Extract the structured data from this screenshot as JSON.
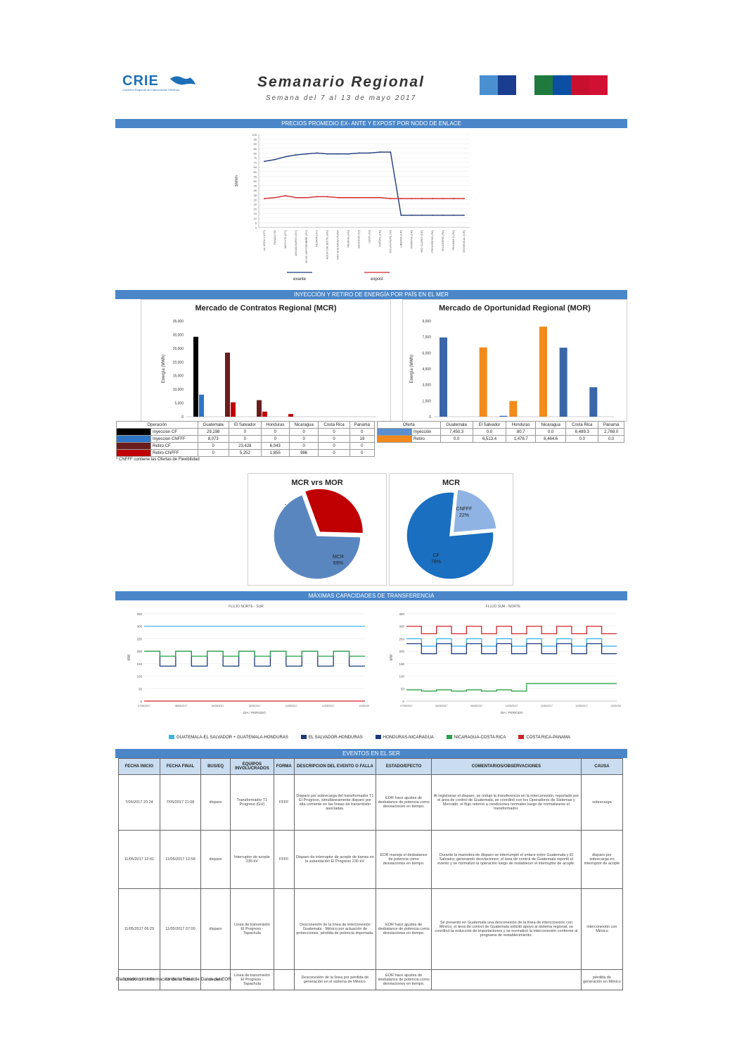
{
  "header": {
    "logo_text": "CRIE",
    "logo_subtitle": "Comisión Regional de Interconexión Eléctrica",
    "title": "Semanario Regional",
    "subtitle": "Semana del 7 al 13 de mayo 2017",
    "flag_colors": [
      "#4a8fd0",
      "#1a3d8f",
      "#ffffff",
      "#1f7a3d",
      "#0b4fa3",
      "#c8102e",
      "#d21034"
    ]
  },
  "sections": {
    "prices": "PRECIOS PROMEDIO EX- ANTE Y EXPOST POR NODO DE ENLACE",
    "injection": "INYECCIÓN Y RETIRO DE ENERGÍA POR PAÍS EN EL MER",
    "transfer": "MÁXIMAS CAPACIDADES DE TRANSFERENCIA",
    "events": "EVENTOS EN EL SER"
  },
  "chart_data": [
    {
      "type": "line",
      "ylabel": "$/MWh",
      "ylim": [
        0,
        100
      ],
      "yticks": [
        "0",
        "5",
        "10",
        "15",
        "20",
        "25",
        "30",
        "35",
        "40",
        "45",
        "50",
        "55",
        "60",
        "65",
        "70",
        "75",
        "80",
        "85",
        "90",
        "95",
        "100"
      ],
      "x": [
        "LA VEGA II (GT)",
        "PANALUYA",
        "MOYUTA (GT)",
        "AHUACHAPAN (SV)",
        "15 DE SEPTIEMBRE (SV)",
        "NEJAPA (SV)",
        "AGUA CALIENTE (HN)",
        "SAN BUENAVENTURA",
        "PAVANA (HN)",
        "SANDINO (NI)",
        "LEON (NI)",
        "CAÑAS (CR)",
        "TICUANTEPE (NI)",
        "LIBERIA (CR)",
        "PARRITA (CR)",
        "RIO CLARO (CR)",
        "PROGRESO (PA)",
        "VELADERO (PA)",
        "PANAMA II (PA)",
        "DOMINICAL (CR)"
      ],
      "series": [
        {
          "name": "exante",
          "color": "#1f3a7a",
          "values": [
            71,
            73,
            76,
            78,
            79,
            80,
            79,
            79,
            79,
            80,
            80,
            81,
            81,
            13,
            13,
            13,
            13,
            13,
            13,
            13
          ]
        },
        {
          "name": "expost",
          "color": "#d0242b",
          "values": [
            31,
            32,
            34,
            32,
            32,
            33,
            33,
            32,
            32,
            32,
            32,
            32,
            31,
            31,
            31,
            31,
            31,
            31,
            31,
            31
          ]
        }
      ]
    },
    {
      "type": "bar",
      "title": "Mercado de Contratos Regional (MCR)",
      "ylabel": "Energía (MWh)",
      "ylim": [
        0,
        35000
      ],
      "yticks": [
        "0",
        "5,000",
        "10,000",
        "15,000",
        "20,000",
        "25,000",
        "30,000",
        "35,000"
      ],
      "categories": [
        "Guatemala",
        "El Salvador",
        "Honduras",
        "Nicaragua",
        "Costa Rica",
        "Panamá"
      ],
      "series": [
        {
          "name": "Inyeccion CF",
          "color": "#000000",
          "values": [
            29198,
            0,
            0,
            0,
            0,
            0
          ]
        },
        {
          "name": "Inyeccion CNFFF",
          "color": "#2e75c8",
          "values": [
            8073,
            0,
            0,
            0,
            0,
            19
          ]
        },
        {
          "name": "Retiro CF",
          "color": "#6b1d1d",
          "values": [
            0,
            23428,
            6043,
            0,
            0,
            0
          ]
        },
        {
          "name": "Retiro CNFFF",
          "color": "#c00000",
          "values": [
            0,
            5252,
            1855,
            986,
            0,
            0
          ]
        }
      ]
    },
    {
      "type": "bar",
      "title": "Mercado de Oportunidad Regional (MOR)",
      "ylabel": "Energía (MWh)",
      "ylim": [
        0,
        9000
      ],
      "yticks": [
        "0",
        "1,500",
        "3,000",
        "4,500",
        "6,000",
        "7,500",
        "9,000"
      ],
      "categories": [
        "Guatemala",
        "El Salvador",
        "Honduras",
        "Nicaragua",
        "Costa Rica",
        "Panamá"
      ],
      "series": [
        {
          "name": "Inyección",
          "color": "#3a66a8",
          "values": [
            7450.3,
            0.0,
            80.7,
            0.0,
            6489.3,
            2769.0
          ]
        },
        {
          "name": "Retiro",
          "color": "#f28a1c",
          "values": [
            0.0,
            6513.4,
            1476.7,
            8464.6,
            0.0,
            0.0
          ]
        }
      ]
    },
    {
      "type": "pie",
      "title": "MCR vrs MOR",
      "slices": [
        {
          "label": "MOR",
          "value": 31,
          "pct": "31%",
          "color": "#c00000"
        },
        {
          "label": "MCR",
          "value": 69,
          "pct": "69%",
          "color": "#5a86c0"
        }
      ]
    },
    {
      "type": "pie",
      "title": "MCR",
      "slices": [
        {
          "label": "CNFFF",
          "value": 22,
          "pct": "22%",
          "color": "#8fb4e3"
        },
        {
          "label": "CF",
          "value": 78,
          "pct": "78%",
          "color": "#1a6fc0"
        }
      ]
    },
    {
      "type": "line",
      "title": "FLUJO NORTE - SUR",
      "ylabel": "MW",
      "xlabel": "DIA / PERIODO",
      "ylim": [
        0,
        350
      ],
      "yticks": [
        "0",
        "50",
        "100",
        "150",
        "200",
        "250",
        "300",
        "350"
      ],
      "xticks": [
        "07/05/2017",
        "08/05/2017",
        "09/05/2017",
        "10/05/2017",
        "11/05/2017",
        "12/05/2017",
        "13/05/2017"
      ],
      "series": [
        {
          "name": "GUATEMALA-EL SALVADOR + GUATEMALA-HONDURAS",
          "color": "#3fb4e6",
          "values": [
            300,
            300,
            300,
            300,
            300,
            300,
            300,
            300,
            300,
            300,
            300,
            300,
            300,
            300
          ]
        },
        {
          "name": "EL SALVADOR-HONDURAS",
          "color": "#1f3a7a",
          "values": [
            200,
            140,
            200,
            140,
            200,
            140,
            200,
            140,
            200,
            140,
            200,
            140,
            200,
            140
          ]
        },
        {
          "name": "NICARAGUA-COSTA RICA",
          "color": "#2aa34a",
          "values": [
            200,
            180,
            200,
            180,
            200,
            180,
            200,
            180,
            200,
            180,
            200,
            180,
            200,
            180
          ]
        },
        {
          "name": "COSTA RICA-PANAMA",
          "color": "#d0242b",
          "values": [
            0,
            0,
            0,
            0,
            0,
            0,
            0,
            0,
            0,
            0,
            0,
            0,
            0,
            0
          ]
        }
      ]
    },
    {
      "type": "line",
      "title": "FLUJO SUR - NORTE",
      "ylabel": "MW",
      "xlabel": "DIA / PERIODO",
      "ylim": [
        0,
        350
      ],
      "yticks": [
        "0",
        "50",
        "100",
        "150",
        "200",
        "250",
        "300",
        "350"
      ],
      "xticks": [
        "07/05/2017",
        "08/05/2017",
        "09/05/2017",
        "10/05/2017",
        "11/05/2017",
        "12/05/2017",
        "13/05/2017"
      ],
      "series": [
        {
          "name": "GUATEMALA-EL SALVADOR + GUATEMALA-HONDURAS",
          "color": "#3fb4e6",
          "values": [
            250,
            220,
            250,
            220,
            250,
            220,
            250,
            220,
            250,
            220,
            250,
            220,
            250,
            220
          ]
        },
        {
          "name": "EL SALVADOR-HONDURAS",
          "color": "#1f3a7a",
          "values": [
            230,
            190,
            230,
            190,
            230,
            190,
            230,
            190,
            230,
            190,
            230,
            190,
            230,
            190
          ]
        },
        {
          "name": "NICARAGUA-COSTA RICA",
          "color": "#2aa34a",
          "values": [
            45,
            40,
            45,
            40,
            45,
            40,
            45,
            40,
            70,
            70,
            70,
            70,
            70,
            70
          ]
        },
        {
          "name": "COSTA RICA-PANAMA",
          "color": "#d0242b",
          "values": [
            300,
            270,
            300,
            270,
            300,
            270,
            300,
            270,
            300,
            270,
            300,
            270,
            300,
            270
          ]
        }
      ]
    }
  ],
  "price_legend": [
    "exante",
    "expost"
  ],
  "mcr_table": {
    "header": [
      "Operación",
      "Guatemala",
      "El Salvador",
      "Honduras",
      "Nicaragua",
      "Costa Rica",
      "Panamá"
    ],
    "rows": [
      {
        "label": "Inyeccion CF",
        "color": "#000000",
        "cells": [
          "29,198",
          "0",
          "0",
          "0",
          "0",
          "0"
        ]
      },
      {
        "label": "Inyeccion CNFFF",
        "color": "#2e75c8",
        "cells": [
          "8,073",
          "0",
          "0",
          "0",
          "0",
          "19"
        ]
      },
      {
        "label": "Retiro CF",
        "color": "#6b1d1d",
        "cells": [
          "0",
          "23,428",
          "6,043",
          "0",
          "0",
          "0"
        ]
      },
      {
        "label": "Retiro CNFFF",
        "color": "#c00000",
        "cells": [
          "0",
          "5,252",
          "1,855",
          "986",
          "0",
          "0"
        ]
      }
    ],
    "note": "* CNFFF contiene las Ofertas de Flexibilidad"
  },
  "mor_table": {
    "header": [
      "Oferta",
      "Guatemala",
      "El Salvador",
      "Honduras",
      "Nicaragua",
      "Costa Rica",
      "Panamá"
    ],
    "rows": [
      {
        "label": "Inyección",
        "color": "#5b8fd0",
        "cells": [
          "7,450.3",
          "0.0",
          "80.7",
          "0.0",
          "6,489.3",
          "2,769.0"
        ]
      },
      {
        "label": "Retiro",
        "color": "#f28a1c",
        "cells": [
          "0.0",
          "6,513.4",
          "1,476.7",
          "8,464.6",
          "0.0",
          "0.0"
        ]
      }
    ]
  },
  "transfer_legend": [
    {
      "label": "GUATEMALA-EL SALVADOR + GUATEMALA-HONDURAS",
      "color": "#3fb4e6"
    },
    {
      "label": "EL SALVADOR-HONDURAS",
      "color": "#1f3a7a"
    },
    {
      "label": "HONDURAS-NICARAGUA",
      "color": "#1f3a7a"
    },
    {
      "label": "NICARAGUA-COSTA RICA",
      "color": "#2aa34a"
    },
    {
      "label": "COSTA RICA-PANAMA",
      "color": "#d0242b"
    }
  ],
  "events": {
    "headers": [
      "FECHA INICIO",
      "FECHA FINAL",
      "BUS/EQ",
      "EQUIPOS INVOLUCRADOS",
      "FORMA",
      "DESCRIPCION DEL EVENTO O FALLA",
      "ESTADO/EFECTO",
      "COMENTARIOS/OBSERVACIONES",
      "CAUSA"
    ],
    "rows": [
      {
        "cells": [
          "7/05/2017 20:24",
          "7/05/2017 21:08",
          "disparo",
          "Transformador T1 Progreso (GU)",
          "FFFF",
          "Disparo por sobrecarga del transformador T1 El Progreso, simultáneamente disparo por alta corriente en las líneas de transmisión asociadas.",
          "EOR hace ajustes de desbalance de potencia como desviaciones en tiempo.",
          "Al registrarse el disparo, se redujo la transferencia en la interconexión, reportado por el área de control de Guatemala, se coordinó con los Operadores de Sistemas y Mercado; el flujo retornó a condiciones normales luego de normalizarse el transformador.",
          "sobrecarga"
        ]
      },
      {
        "cells": [
          "11/05/2017 12:41",
          "11/05/2017 12:58",
          "disparo",
          "Interruptor de acople 230 kV",
          "FFFF",
          "Disparo de interruptor de acople de barras en la subestación El Progreso 230 kV.",
          "EOR maneja el desbalance de potencia como desviaciones en tiempo.",
          "Durante la maniobra de disparo se interrumpió el enlace entre Guatemala y El Salvador, generando desviaciones; el área de control de Guatemala reportó el evento y se normalizó la operación luego de restablecer el interruptor de acople.",
          "disparo por sobrecarga en interruptor de acople"
        ]
      },
      {
        "cells": [
          "11/05/2017 06:29",
          "11/05/2017 07:00",
          "disparo",
          "Línea de transmisión El Progreso - Tapachula",
          "",
          "Desconexión de la línea de interconexión Guatemala - México por actuación de protecciones, pérdida de potencia importada.",
          "EOR hace ajustes de desbalance de potencia como desviaciones en tiempo.",
          "Se presentó en Guatemala una desconexión de la línea de interconexión con México; el área de control de Guatemala solicitó apoyo al sistema regional, se coordinó la reducción de importaciones y se normalizó la interconexión conforme al programa de restablecimiento.",
          "interconexión con México"
        ]
      },
      {
        "cells": [
          "13/05/2017 08:59",
          "13/05/2017 09:00",
          "disparo",
          "Línea de transmisión El Progreso - Tapachula",
          "",
          "Desconexión de la línea por pérdida de generación en el sistema de México.",
          "EOR hace ajustes de desbalance de potencia como desviaciones en tiempo.",
          "",
          "pérdida de generación en México"
        ]
      }
    ]
  },
  "footer": "Elaborado con información de la Base de Datos del EOR."
}
